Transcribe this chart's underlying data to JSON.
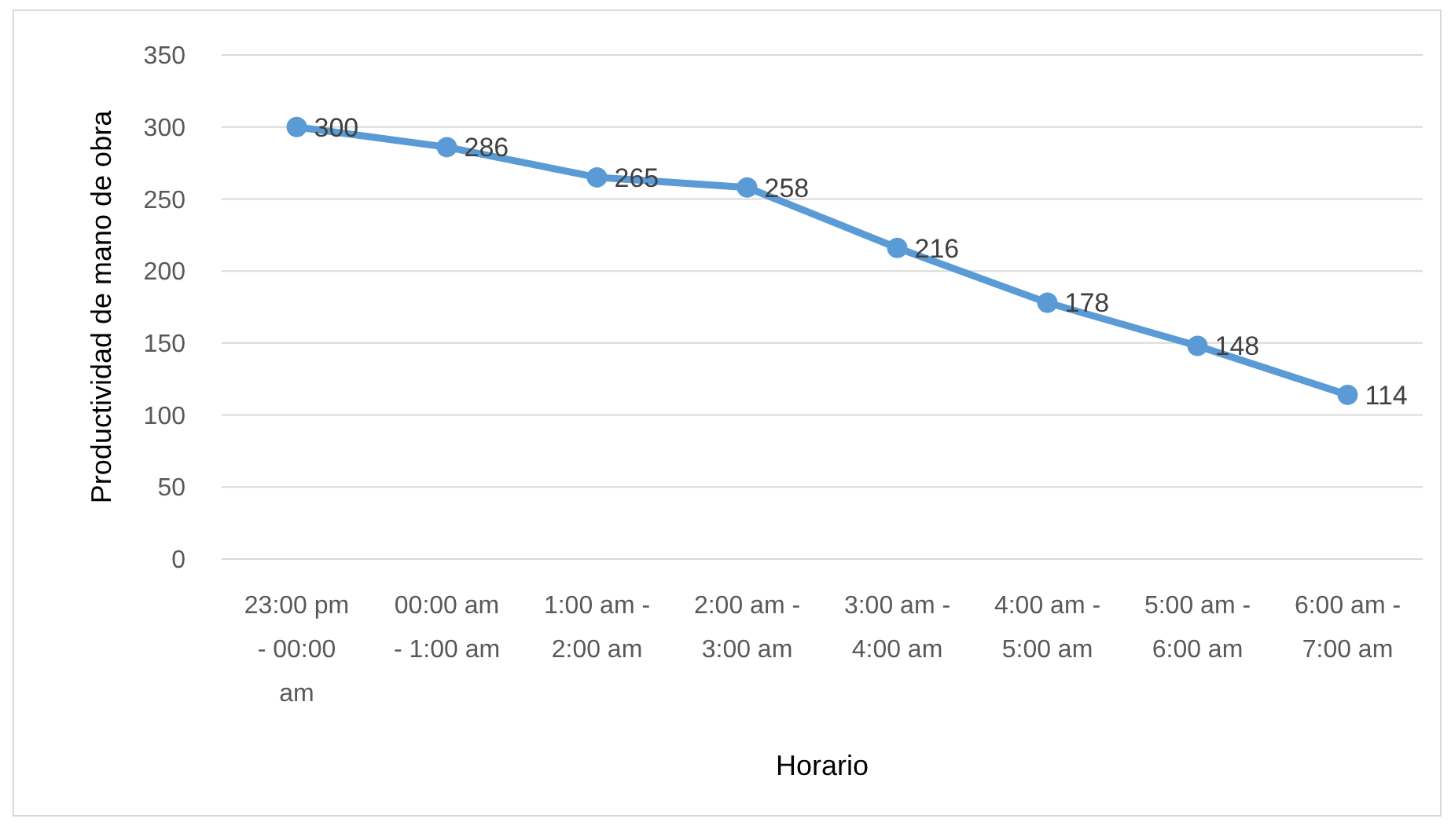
{
  "chart_data": {
    "type": "line",
    "xlabel": "Horario",
    "ylabel": "Productividad de mano de obra",
    "categories": [
      "23:00 pm - 00:00 am",
      "00:00 am - 1:00 am",
      "1:00 am - 2:00 am",
      "2:00 am - 3:00 am",
      "3:00 am - 4:00 am",
      "4:00 am - 5:00 am",
      "5:00 am - 6:00 am",
      "6:00 am - 7:00 am"
    ],
    "series": [
      {
        "color": "#5b9bd5",
        "values": [
          300,
          286,
          265,
          258,
          216,
          178,
          148,
          114
        ]
      }
    ],
    "ylim": [
      0,
      350
    ],
    "yticks": [
      0,
      50,
      100,
      150,
      200,
      250,
      300,
      350
    ],
    "grid": "y",
    "marker": "circle",
    "line_style": "solid",
    "data_labels": true
  }
}
